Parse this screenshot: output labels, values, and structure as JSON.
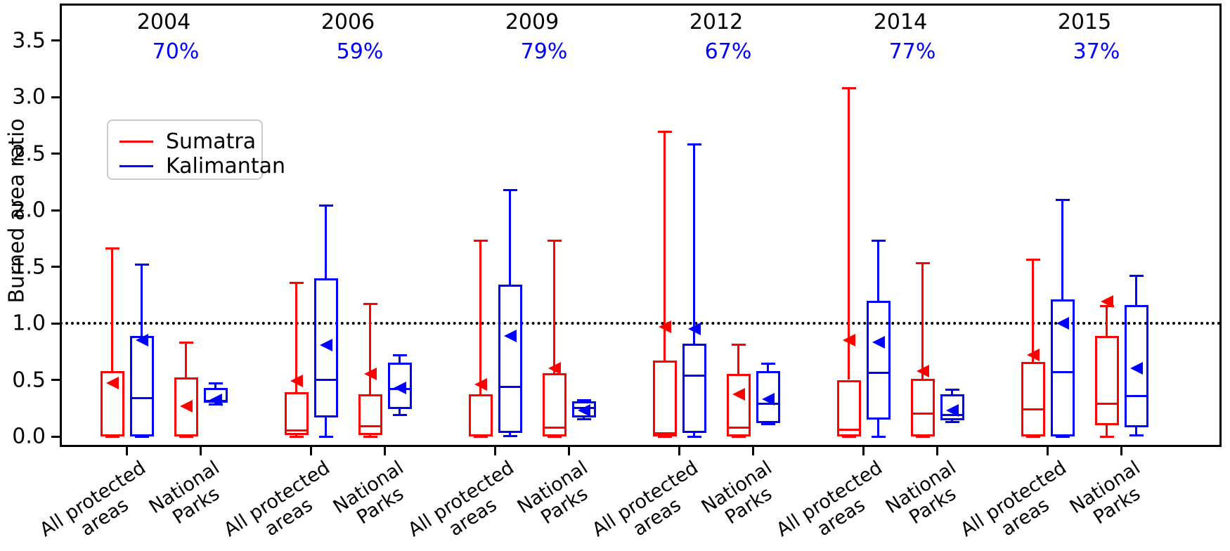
{
  "figure": {
    "ylabel": "Burned area ratio",
    "background": "#ffffff",
    "axis_color": "#000000",
    "reference_line_value": 1.0
  },
  "legend": {
    "items": [
      {
        "label": "Sumatra",
        "color": "#ff0000"
      },
      {
        "label": "Kalimantan",
        "color": "#0000ff"
      }
    ]
  },
  "chart_data": {
    "type": "boxplot",
    "title": "",
    "xlabel": "",
    "ylabel": "Burned area ratio",
    "ylim": [
      -0.09,
      3.83
    ],
    "yticks": [
      "0.0",
      "0.5",
      "1.0",
      "1.5",
      "2.0",
      "2.5",
      "3.0",
      "3.5"
    ],
    "ytick_values": [
      0.0,
      0.5,
      1.0,
      1.5,
      2.0,
      2.5,
      3.0,
      3.5
    ],
    "grid": false,
    "reference_line_y": 1.0,
    "legend_position": "upper-left",
    "series": [
      "Sumatra",
      "Kalimantan"
    ],
    "series_colors": {
      "Sumatra": "#ff0000",
      "Kalimantan": "#0000ff"
    },
    "percent_color": "#0000ff",
    "group_labels": [
      [
        "All protected",
        "areas"
      ],
      [
        "National",
        "Parks"
      ]
    ],
    "years": [
      {
        "label": "2004",
        "pct": "70%",
        "boxes": [
          {
            "series": "Sumatra",
            "group": "All protected areas",
            "whislo": 0.0,
            "q1": 0.0,
            "med": 0.01,
            "q3": 0.58,
            "whishi": 1.66,
            "mean": 0.47
          },
          {
            "series": "Kalimantan",
            "group": "All protected areas",
            "whislo": 0.0,
            "q1": 0.0,
            "med": 0.34,
            "q3": 0.89,
            "whishi": 1.52,
            "mean": 0.85
          },
          {
            "series": "Sumatra",
            "group": "National Parks",
            "whislo": 0.0,
            "q1": 0.0,
            "med": 0.01,
            "q3": 0.52,
            "whishi": 0.83,
            "mean": 0.27
          },
          {
            "series": "Kalimantan",
            "group": "National Parks",
            "whislo": 0.28,
            "q1": 0.3,
            "med": 0.315,
            "q3": 0.43,
            "whishi": 0.47,
            "mean": 0.32
          }
        ]
      },
      {
        "label": "2006",
        "pct": "59%",
        "boxes": [
          {
            "series": "Sumatra",
            "group": "All protected areas",
            "whislo": 0.0,
            "q1": 0.01,
            "med": 0.05,
            "q3": 0.39,
            "whishi": 1.36,
            "mean": 0.49
          },
          {
            "series": "Kalimantan",
            "group": "All protected areas",
            "whislo": 0.0,
            "q1": 0.17,
            "med": 0.5,
            "q3": 1.4,
            "whishi": 2.04,
            "mean": 0.81
          },
          {
            "series": "Sumatra",
            "group": "National Parks",
            "whislo": 0.0,
            "q1": 0.01,
            "med": 0.09,
            "q3": 0.37,
            "whishi": 1.17,
            "mean": 0.55
          },
          {
            "series": "Kalimantan",
            "group": "National Parks",
            "whislo": 0.19,
            "q1": 0.24,
            "med": 0.42,
            "q3": 0.65,
            "whishi": 0.72,
            "mean": 0.43
          }
        ]
      },
      {
        "label": "2009",
        "pct": "79%",
        "boxes": [
          {
            "series": "Sumatra",
            "group": "All protected areas",
            "whislo": 0.0,
            "q1": 0.0,
            "med": 0.01,
            "q3": 0.37,
            "whishi": 1.73,
            "mean": 0.46
          },
          {
            "series": "Kalimantan",
            "group": "All protected areas",
            "whislo": 0.005,
            "q1": 0.03,
            "med": 0.44,
            "q3": 1.34,
            "whishi": 2.18,
            "mean": 0.89
          },
          {
            "series": "Sumatra",
            "group": "National Parks",
            "whislo": 0.0,
            "q1": 0.0,
            "med": 0.08,
            "q3": 0.56,
            "whishi": 1.73,
            "mean": 0.6
          },
          {
            "series": "Kalimantan",
            "group": "National Parks",
            "whislo": 0.15,
            "q1": 0.17,
            "med": 0.25,
            "q3": 0.31,
            "whishi": 0.32,
            "mean": 0.23
          }
        ]
      },
      {
        "label": "2012",
        "pct": "67%",
        "boxes": [
          {
            "series": "Sumatra",
            "group": "All protected areas",
            "whislo": 0.0,
            "q1": 0.0,
            "med": 0.03,
            "q3": 0.67,
            "whishi": 2.69,
            "mean": 0.97
          },
          {
            "series": "Kalimantan",
            "group": "All protected areas",
            "whislo": 0.0,
            "q1": 0.03,
            "med": 0.54,
            "q3": 0.82,
            "whishi": 2.58,
            "mean": 0.95
          },
          {
            "series": "Sumatra",
            "group": "National Parks",
            "whislo": 0.0,
            "q1": 0.0,
            "med": 0.08,
            "q3": 0.55,
            "whishi": 0.81,
            "mean": 0.37
          },
          {
            "series": "Kalimantan",
            "group": "National Parks",
            "whislo": 0.11,
            "q1": 0.12,
            "med": 0.29,
            "q3": 0.58,
            "whishi": 0.64,
            "mean": 0.33
          }
        ]
      },
      {
        "label": "2014",
        "pct": "77%",
        "boxes": [
          {
            "series": "Sumatra",
            "group": "All protected areas",
            "whislo": 0.0,
            "q1": 0.0,
            "med": 0.06,
            "q3": 0.5,
            "whishi": 3.08,
            "mean": 0.85
          },
          {
            "series": "Kalimantan",
            "group": "All protected areas",
            "whislo": 0.0,
            "q1": 0.15,
            "med": 0.56,
            "q3": 1.2,
            "whishi": 1.73,
            "mean": 0.83
          },
          {
            "series": "Sumatra",
            "group": "National Parks",
            "whislo": 0.0,
            "q1": 0.0,
            "med": 0.2,
            "q3": 0.51,
            "whishi": 1.53,
            "mean": 0.58
          },
          {
            "series": "Kalimantan",
            "group": "National Parks",
            "whislo": 0.13,
            "q1": 0.145,
            "med": 0.19,
            "q3": 0.37,
            "whishi": 0.41,
            "mean": 0.23
          }
        ]
      },
      {
        "label": "2015",
        "pct": "37%",
        "boxes": [
          {
            "series": "Sumatra",
            "group": "All protected areas",
            "whislo": 0.0,
            "q1": 0.0,
            "med": 0.24,
            "q3": 0.66,
            "whishi": 1.56,
            "mean": 0.72
          },
          {
            "series": "Kalimantan",
            "group": "All protected areas",
            "whislo": 0.0,
            "q1": 0.0,
            "med": 0.57,
            "q3": 1.21,
            "whishi": 2.09,
            "mean": 1.0
          },
          {
            "series": "Sumatra",
            "group": "National Parks",
            "whislo": 0.0,
            "q1": 0.1,
            "med": 0.29,
            "q3": 0.89,
            "whishi": 1.15,
            "mean": 1.19
          },
          {
            "series": "Kalimantan",
            "group": "National Parks",
            "whislo": 0.01,
            "q1": 0.08,
            "med": 0.36,
            "q3": 1.16,
            "whishi": 1.42,
            "mean": 0.6
          }
        ]
      }
    ]
  }
}
